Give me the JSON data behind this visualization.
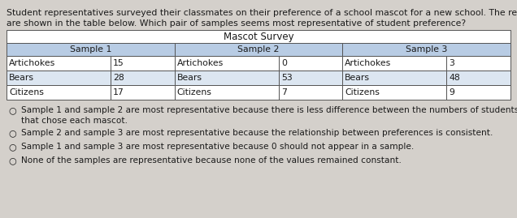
{
  "question_text_line1": "Student representatives surveyed their classmates on their preference of a school mascot for a new school. The results",
  "question_text_line2": "are shown in the table below. Which pair of samples seems most representative of student preference?",
  "table_title": "Mascot Survey",
  "table_headers": [
    "Sample 1",
    "Sample 2",
    "Sample 3"
  ],
  "table_data": [
    [
      "Artichokes",
      "15",
      "Artichokes",
      "0",
      "Artichokes",
      "3"
    ],
    [
      "Bears",
      "28",
      "Bears",
      "53",
      "Bears",
      "48"
    ],
    [
      "Citizens",
      "17",
      "Citizens",
      "7",
      "Citizens",
      "9"
    ]
  ],
  "options": [
    "Sample 1 and sample 2 are most representative because there is less difference between the numbers of students\nthat chose each mascot.",
    "Sample 2 and sample 3 are most representative because the relationship between preferences is consistent.",
    "Sample 1 and sample 3 are most representative because 0 should not appear in a sample.",
    "None of the samples are representative because none of the values remained constant."
  ],
  "bg_color": "#d4d0cb",
  "table_bg_title": "#ffffff",
  "table_header_bg": "#b8cce4",
  "table_row_bg_white": "#ffffff",
  "table_row_bg_blue": "#dce6f1",
  "text_color": "#1a1a1a",
  "font_size_question": 7.8,
  "font_size_table_title": 8.5,
  "font_size_table": 7.8,
  "font_size_options": 7.6
}
